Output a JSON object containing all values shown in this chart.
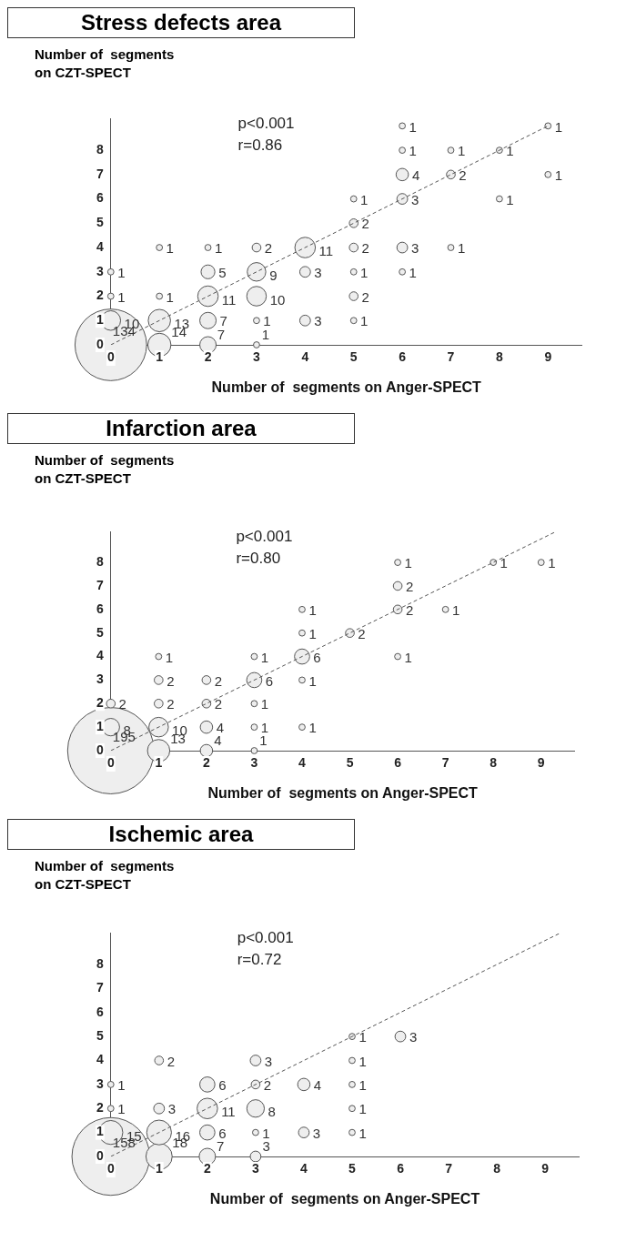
{
  "chart_data": [
    {
      "type": "bubble",
      "title": "Stress defects area",
      "xlabel": "Number of  segments on Anger-SPECT",
      "ylabel": "Number of  segments on CZT-SPECT",
      "annotations": [
        "p<0.001",
        "r=0.86"
      ],
      "xlim": [
        0,
        9.7
      ],
      "ylim": [
        0,
        9.3
      ],
      "xticks": [
        0,
        1,
        2,
        3,
        4,
        5,
        6,
        7,
        8,
        9
      ],
      "yticks": [
        0,
        1,
        2,
        3,
        4,
        5,
        6,
        7,
        8
      ],
      "grid": false,
      "legend": false,
      "series": [
        {
          "type": "bubble",
          "color": "#eeeeee",
          "x": [
            0,
            1,
            2,
            3,
            0,
            1,
            2,
            3,
            4,
            5,
            0,
            1,
            2,
            3,
            5,
            0,
            2,
            3,
            4,
            5,
            6,
            1,
            2,
            3,
            4,
            5,
            6,
            7,
            5,
            5,
            6,
            8,
            6,
            7,
            9,
            6,
            7,
            8,
            6,
            9
          ],
          "values": [
            0,
            0,
            0,
            0,
            1,
            1,
            1,
            1,
            1,
            1,
            2,
            2,
            2,
            2,
            2,
            3,
            3,
            3,
            3,
            3,
            3,
            4,
            4,
            4,
            4,
            4,
            4,
            4,
            5,
            6,
            6,
            6,
            7,
            7,
            7,
            8,
            8,
            8,
            9,
            9
          ],
          "sizes": [
            134,
            14,
            7,
            1,
            10,
            13,
            7,
            1,
            3,
            1,
            1,
            1,
            11,
            10,
            2,
            1,
            5,
            9,
            3,
            1,
            1,
            1,
            1,
            2,
            11,
            2,
            3,
            1,
            2,
            1,
            3,
            1,
            4,
            2,
            1,
            1,
            1,
            1,
            1,
            1
          ],
          "value_labels": [
            "134",
            "14",
            "7",
            "1",
            "10",
            "13",
            "7",
            "1",
            "3",
            "1",
            "1",
            "1",
            "11",
            "10",
            "2",
            "1",
            "5",
            "9",
            "3",
            "1",
            "1",
            "1",
            "1",
            "2",
            "11",
            "2",
            "3",
            "1",
            "2",
            "1",
            "3",
            "1",
            "4",
            "2",
            "1",
            "1",
            "1",
            "1",
            "1",
            "1"
          ]
        },
        {
          "type": "line",
          "color": "#555555",
          "line_style": "dashed",
          "x": [
            0,
            9
          ],
          "values": [
            0,
            9
          ]
        }
      ]
    },
    {
      "type": "bubble",
      "title": "Infarction area",
      "xlabel": "Number of  segments on Anger-SPECT",
      "ylabel": "Number of  segments on CZT-SPECT",
      "annotations": [
        "p<0.001",
        "r=0.80"
      ],
      "xlim": [
        0,
        9.7
      ],
      "ylim": [
        0,
        9.3
      ],
      "xticks": [
        0,
        1,
        2,
        3,
        4,
        5,
        6,
        7,
        8,
        9
      ],
      "yticks": [
        0,
        1,
        2,
        3,
        4,
        5,
        6,
        7,
        8
      ],
      "grid": false,
      "legend": false,
      "series": [
        {
          "type": "bubble",
          "color": "#eeeeee",
          "x": [
            0,
            1,
            2,
            3,
            0,
            1,
            2,
            3,
            4,
            0,
            1,
            2,
            3,
            1,
            2,
            3,
            4,
            1,
            3,
            4,
            6,
            4,
            5,
            4,
            6,
            7,
            6,
            6,
            8,
            9
          ],
          "values": [
            0,
            0,
            0,
            0,
            1,
            1,
            1,
            1,
            1,
            2,
            2,
            2,
            2,
            3,
            3,
            3,
            3,
            4,
            4,
            4,
            4,
            5,
            5,
            6,
            6,
            6,
            7,
            8,
            8,
            8
          ],
          "sizes": [
            195,
            13,
            4,
            1,
            8,
            10,
            4,
            1,
            1,
            2,
            2,
            2,
            1,
            2,
            2,
            6,
            1,
            1,
            1,
            6,
            1,
            1,
            2,
            1,
            2,
            1,
            2,
            1,
            1,
            1
          ],
          "value_labels": [
            "195",
            "13",
            "4",
            "1",
            "8",
            "10",
            "4",
            "1",
            "1",
            "2",
            "2",
            "2",
            "1",
            "2",
            "2",
            "6",
            "1",
            "1",
            "1",
            "6",
            "1",
            "1",
            "2",
            "1",
            "2",
            "1",
            "2",
            "1",
            "1",
            "1"
          ]
        },
        {
          "type": "line",
          "color": "#555555",
          "line_style": "dashed",
          "x": [
            0,
            9.3
          ],
          "values": [
            0,
            9.3
          ]
        }
      ]
    },
    {
      "type": "bubble",
      "title": "Ischemic area",
      "xlabel": "Number of  segments on Anger-SPECT",
      "ylabel": "Number of  segments on CZT-SPECT",
      "annotations": [
        "p<0.001",
        "r=0.72"
      ],
      "xlim": [
        0,
        9.7
      ],
      "ylim": [
        0,
        9.3
      ],
      "xticks": [
        0,
        1,
        2,
        3,
        4,
        5,
        6,
        7,
        8,
        9
      ],
      "yticks": [
        0,
        1,
        2,
        3,
        4,
        5,
        6,
        7,
        8
      ],
      "grid": false,
      "legend": false,
      "series": [
        {
          "type": "bubble",
          "color": "#eeeeee",
          "x": [
            0,
            1,
            2,
            3,
            0,
            1,
            2,
            3,
            4,
            5,
            0,
            1,
            2,
            3,
            5,
            0,
            2,
            3,
            4,
            5,
            1,
            3,
            5,
            5,
            6
          ],
          "values": [
            0,
            0,
            0,
            0,
            1,
            1,
            1,
            1,
            1,
            1,
            2,
            2,
            2,
            2,
            2,
            3,
            3,
            3,
            3,
            3,
            4,
            4,
            4,
            5,
            5
          ],
          "sizes": [
            158,
            18,
            7,
            3,
            15,
            16,
            6,
            1,
            3,
            1,
            1,
            3,
            11,
            8,
            1,
            1,
            6,
            2,
            4,
            1,
            2,
            3,
            1,
            1,
            3
          ],
          "value_labels": [
            "158",
            "18",
            "7",
            "3",
            "15",
            "16",
            "6",
            "1",
            "3",
            "1",
            "1",
            "3",
            "11",
            "8",
            "1",
            "1",
            "6",
            "2",
            "4",
            "1",
            "2",
            "3",
            "1",
            "1",
            "3"
          ]
        },
        {
          "type": "line",
          "color": "#555555",
          "line_style": "dashed",
          "x": [
            0,
            9.3
          ],
          "values": [
            0,
            9.3
          ]
        }
      ]
    }
  ]
}
